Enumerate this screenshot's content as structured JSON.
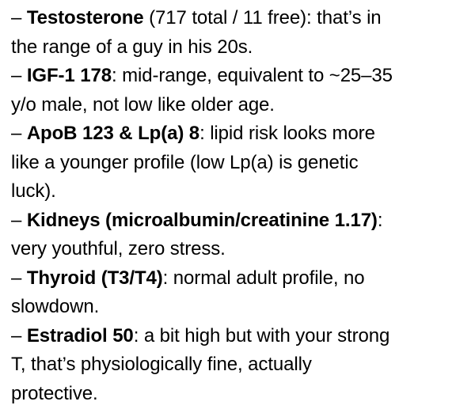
{
  "note": {
    "colors": {
      "text": "#000000",
      "background": "#ffffff"
    },
    "items": [
      {
        "prefix": "– ",
        "term": "Testosterone",
        "desc": " (717 total / 11 free): that’s in\nthe range of a guy in his 20s."
      },
      {
        "prefix": "– ",
        "term": "IGF-1 178",
        "desc": ": mid-range, equivalent to ~25–35\ny/o male, not low like older age."
      },
      {
        "prefix": "– ",
        "term": "ApoB 123 & Lp(a) 8",
        "desc": ": lipid risk looks more\nlike a younger profile (low Lp(a) is genetic\nluck)."
      },
      {
        "prefix": "– ",
        "term": "Kidneys (microalbumin/creatinine 1.17)",
        "desc": ":\nvery youthful, zero stress."
      },
      {
        "prefix": "– ",
        "term": "Thyroid (T3/T4)",
        "desc": ": normal adult profile, no\nslowdown."
      },
      {
        "prefix": "– ",
        "term": "Estradiol 50",
        "desc": ": a bit high but with your strong\nT, that’s physiologically fine, actually\nprotective."
      }
    ]
  }
}
